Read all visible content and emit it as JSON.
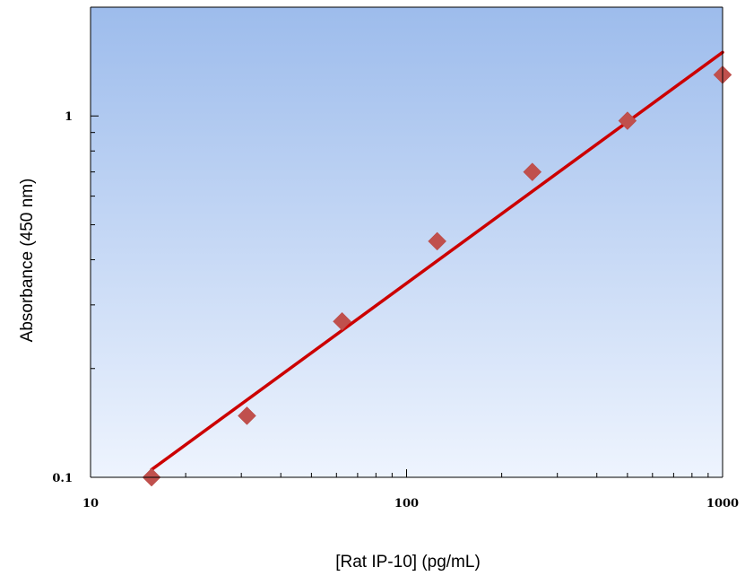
{
  "chart_data": {
    "type": "scatter",
    "title": "",
    "xlabel": "[Rat IP-10] (pg/mL)",
    "ylabel": "Absorbance (450 nm)",
    "x_scale": "log",
    "y_scale": "log",
    "xlim": [
      10,
      1000
    ],
    "ylim": [
      0.1,
      2
    ],
    "x_ticks": [
      {
        "value": 10,
        "label": "10"
      },
      {
        "value": 100,
        "label": "100"
      },
      {
        "value": 1000,
        "label": "1000"
      }
    ],
    "y_ticks": [
      {
        "value": 0.1,
        "label": "0.1"
      },
      {
        "value": 1,
        "label": "1"
      }
    ],
    "grid": false,
    "legend": "none",
    "series": [
      {
        "type": "scatter",
        "marker": "diamond",
        "color": "#c0504d",
        "x": [
          15.6,
          31.25,
          62.5,
          125,
          250,
          500,
          1000
        ],
        "y": [
          0.1,
          0.148,
          0.27,
          0.45,
          0.7,
          0.97,
          1.3
        ]
      },
      {
        "type": "line",
        "color": "#cc0000",
        "x": [
          15.6,
          1000
        ],
        "y": [
          0.105,
          1.5
        ]
      }
    ],
    "background_gradient": [
      "#9dbcec",
      "#eef4fe"
    ]
  }
}
